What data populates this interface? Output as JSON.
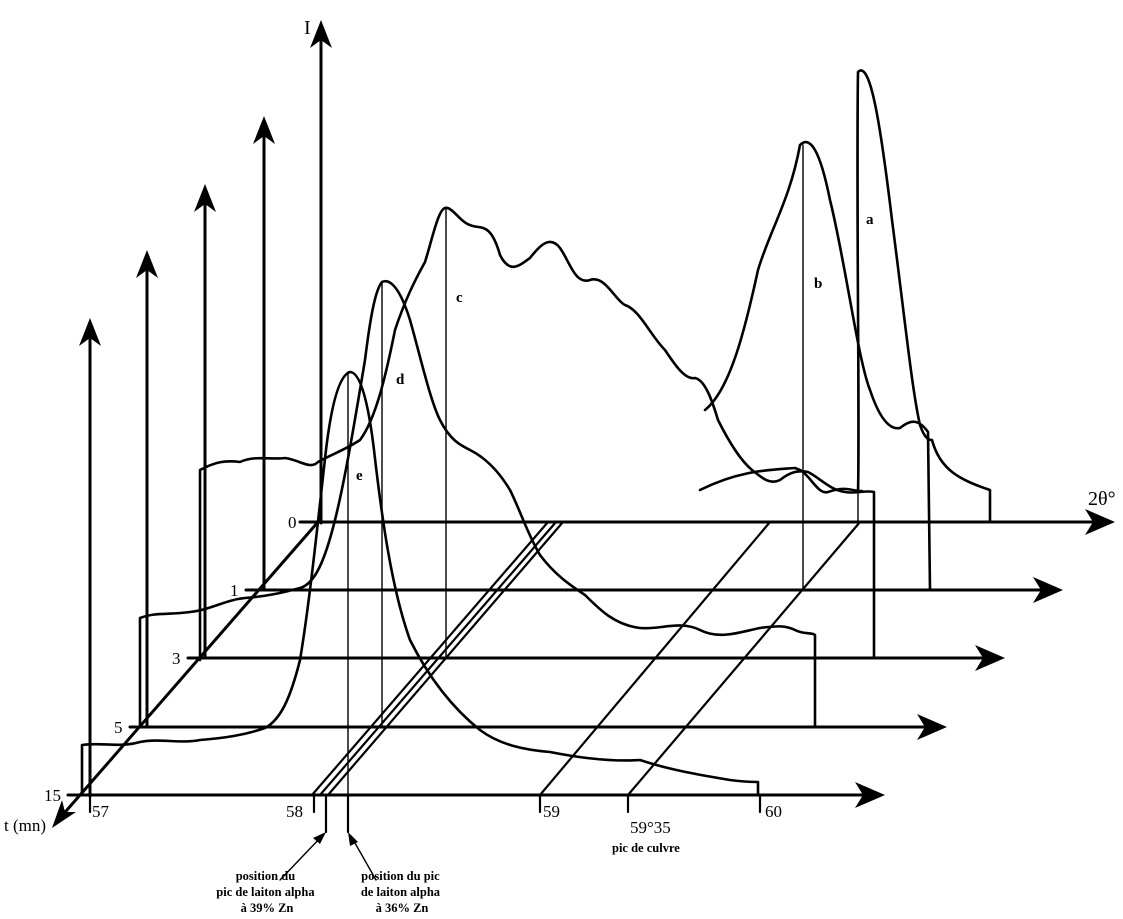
{
  "chart_data": {
    "type": "line",
    "subtype": "3d-waterfall",
    "title": "",
    "x_axis_label": "2θ°",
    "y_axis_label": "I",
    "z_axis_label": "t (mn)",
    "x_ticks": [
      "57",
      "58",
      "59",
      "59°35",
      "60"
    ],
    "x_range": [
      57,
      60.1
    ],
    "z_ticks": [
      "0",
      "1",
      "3",
      "5",
      "15"
    ],
    "grid": false,
    "legend": "none",
    "series": [
      {
        "name": "a",
        "t": 0,
        "x": [
          57,
          57.4,
          57.8,
          58.2,
          58.6,
          59.0,
          59.2,
          59.35,
          59.5,
          59.7,
          59.9,
          60.0,
          60.1
        ],
        "values": [
          3,
          3,
          3,
          3,
          3,
          3,
          3,
          3,
          4,
          5,
          6,
          20,
          26
        ]
      },
      {
        "name": "b",
        "t": 1,
        "x": [
          57,
          57.3,
          57.6,
          57.9,
          58.2,
          58.5,
          58.8,
          59.0,
          59.2,
          59.35,
          59.5,
          59.7,
          59.9,
          60.0
        ],
        "values": [
          1,
          1,
          1,
          1,
          1,
          1,
          1,
          1,
          2,
          3,
          4,
          8,
          22,
          13
        ]
      },
      {
        "name": "c",
        "t": 3,
        "x": [
          57,
          57.2,
          57.4,
          57.6,
          57.8,
          58.0,
          58.2,
          58.4,
          58.6,
          58.8,
          59.0,
          59.2,
          59.35,
          59.5,
          59.7,
          59.9,
          60.0
        ],
        "values": [
          8,
          8,
          9,
          8,
          9,
          10,
          28,
          38,
          45,
          35,
          36,
          25,
          22,
          15,
          7,
          3,
          2
        ]
      },
      {
        "name": "d",
        "t": 5,
        "x": [
          57,
          57.2,
          57.4,
          57.6,
          57.8,
          58.0,
          58.2,
          58.4,
          58.6,
          58.8,
          59.0,
          59.2,
          59.35,
          59.5,
          59.7
        ],
        "values": [
          1,
          1,
          1,
          1,
          3,
          5,
          40,
          25,
          14,
          10,
          5,
          4,
          3,
          2,
          1
        ]
      },
      {
        "name": "e",
        "t": 15,
        "x": [
          57,
          57.2,
          57.4,
          57.6,
          57.8,
          57.9,
          58.0,
          58.1,
          58.2,
          58.4,
          58.6,
          58.8,
          59.0,
          59.2,
          59.4,
          59.6,
          59.8
        ],
        "values": [
          1,
          1,
          1,
          2,
          6,
          13,
          35,
          38,
          28,
          12,
          6,
          3,
          2,
          2,
          1,
          1,
          1
        ]
      }
    ],
    "annotations": [
      {
        "id": "note-39",
        "text": [
          "position du",
          "pic de laiton alpha",
          "à 39% Zn"
        ],
        "x": 58.0
      },
      {
        "id": "note-36",
        "text": [
          "position du pic",
          "de laiton alpha",
          "à 36% Zn"
        ],
        "x": 58.1
      },
      {
        "id": "note-cu",
        "text": "pic de culvre",
        "x": 59.35
      }
    ]
  }
}
